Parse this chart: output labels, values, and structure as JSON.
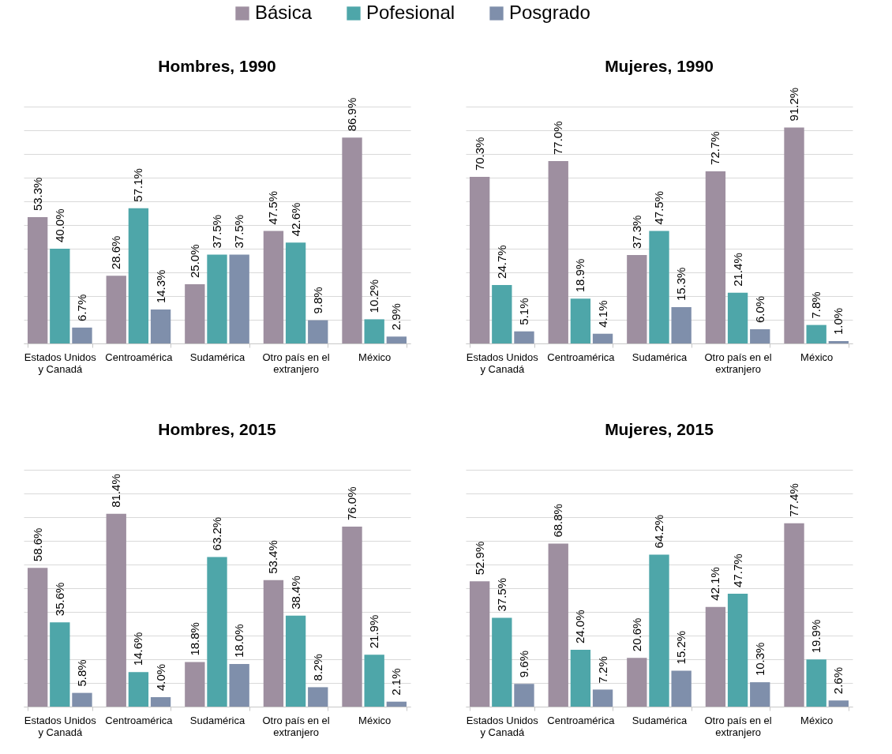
{
  "chart_data": [
    {
      "type": "bar",
      "title": "Hombres, 1990",
      "categories": [
        "Estados Unidos y Canadá",
        "Centroamérica",
        "Sudamérica",
        "Otro país en el extranjero",
        "México"
      ],
      "ylim": [
        0,
        100
      ],
      "grid": "y",
      "tick_labels": "x",
      "legend": "top",
      "series": [
        {
          "name": "Básica",
          "color": "#9e8fa0",
          "values": [
            53.3,
            28.6,
            25.0,
            47.5,
            86.9
          ],
          "value_labels": [
            "53.3%",
            "28.6%",
            "25.0%",
            "47.5%",
            "86.9%"
          ]
        },
        {
          "name": "Pofesional",
          "color": "#4ea6a9",
          "values": [
            40.0,
            57.1,
            37.5,
            42.6,
            10.2
          ],
          "value_labels": [
            "40.0%",
            "57.1%",
            "37.5%",
            "42.6%",
            "10.2%"
          ]
        },
        {
          "name": "Posgrado",
          "color": "#7f8fab",
          "values": [
            6.7,
            14.3,
            37.5,
            9.8,
            2.9
          ],
          "value_labels": [
            "6.7%",
            "14.3%",
            "37.5%",
            "9.8%",
            "2.9%"
          ]
        }
      ]
    },
    {
      "type": "bar",
      "title": "Mujeres, 1990",
      "categories": [
        "Estados Unidos y Canadá",
        "Centroamérica",
        "Sudamérica",
        "Otro país en el extranjero",
        "México"
      ],
      "ylim": [
        0,
        100
      ],
      "grid": "y",
      "tick_labels": "x",
      "series": [
        {
          "name": "Básica",
          "color": "#9e8fa0",
          "values": [
            70.3,
            77.0,
            37.3,
            72.7,
            91.2
          ],
          "value_labels": [
            "70.3%",
            "77.0%",
            "37.3%",
            "72.7%",
            "91.2%"
          ]
        },
        {
          "name": "Pofesional",
          "color": "#4ea6a9",
          "values": [
            24.7,
            18.9,
            47.5,
            21.4,
            7.8
          ],
          "value_labels": [
            "24.7%",
            "18.9%",
            "47.5%",
            "21.4%",
            "7.8%"
          ]
        },
        {
          "name": "Posgrado",
          "color": "#7f8fab",
          "values": [
            5.1,
            4.1,
            15.3,
            6.0,
            1.0
          ],
          "value_labels": [
            "5.1%",
            "4.1%",
            "15.3%",
            "6.0%",
            "1.0%"
          ]
        }
      ]
    },
    {
      "type": "bar",
      "title": "Hombres, 2015",
      "categories": [
        "Estados Unidos y Canadá",
        "Centroamérica",
        "Sudamérica",
        "Otro país en el extranjero",
        "México"
      ],
      "ylim": [
        0,
        100
      ],
      "grid": "y",
      "tick_labels": "x",
      "series": [
        {
          "name": "Básica",
          "color": "#9e8fa0",
          "values": [
            58.6,
            81.4,
            18.8,
            53.4,
            76.0
          ],
          "value_labels": [
            "58.6%",
            "81.4%",
            "18.8%",
            "53.4%",
            "76.0%"
          ]
        },
        {
          "name": "Pofesional",
          "color": "#4ea6a9",
          "values": [
            35.6,
            14.6,
            63.2,
            38.4,
            21.9
          ],
          "value_labels": [
            "35.6%",
            "14.6%",
            "63.2%",
            "38.4%",
            "21.9%"
          ]
        },
        {
          "name": "Posgrado",
          "color": "#7f8fab",
          "values": [
            5.8,
            4.0,
            18.0,
            8.2,
            2.1
          ],
          "value_labels": [
            "5.8%",
            "4.0%",
            "18.0%",
            "8.2%",
            "2.1%"
          ]
        }
      ]
    },
    {
      "type": "bar",
      "title": "Mujeres, 2015",
      "categories": [
        "Estados Unidos y Canadá",
        "Centroamérica",
        "Sudamérica",
        "Otro país en el extranjero",
        "México"
      ],
      "ylim": [
        0,
        100
      ],
      "grid": "y",
      "tick_labels": "x",
      "series": [
        {
          "name": "Básica",
          "color": "#9e8fa0",
          "values": [
            52.9,
            68.8,
            20.6,
            42.1,
            77.4
          ],
          "value_labels": [
            "52.9%",
            "68.8%",
            "20.6%",
            "42.1%",
            "77.4%"
          ]
        },
        {
          "name": "Pofesional",
          "color": "#4ea6a9",
          "values": [
            37.5,
            24.0,
            64.2,
            47.7,
            19.9
          ],
          "value_labels": [
            "37.5%",
            "24.0%",
            "64.2%",
            "47.7%",
            "19.9%"
          ]
        },
        {
          "name": "Posgrado",
          "color": "#7f8fab",
          "values": [
            9.6,
            7.2,
            15.2,
            10.3,
            2.6
          ],
          "value_labels": [
            "9.6%",
            "7.2%",
            "15.2%",
            "10.3%",
            "2.6%"
          ]
        }
      ]
    }
  ]
}
